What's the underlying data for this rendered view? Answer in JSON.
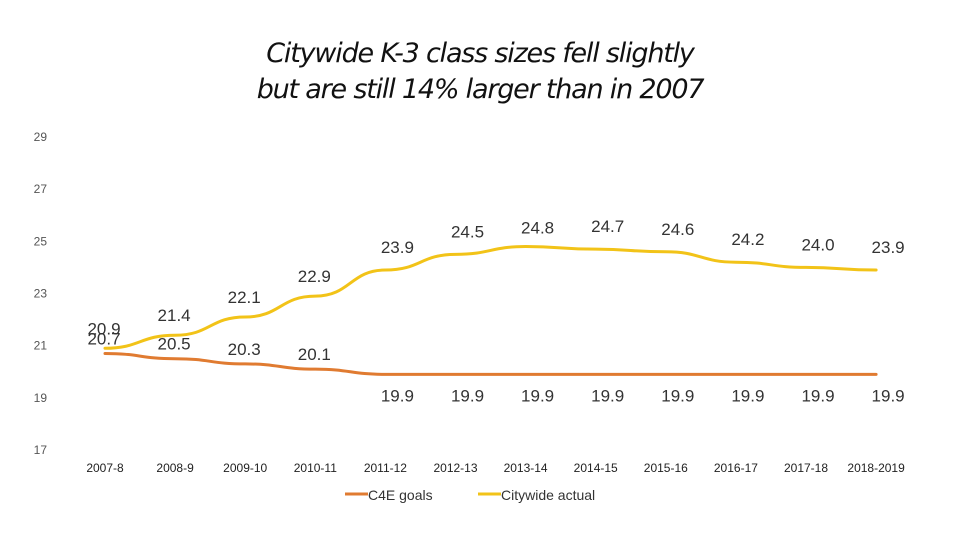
{
  "title_lines": [
    "Citywide K-3 class sizes fell slightly",
    "but are still 14% larger than in 2007"
  ],
  "chart_data": {
    "type": "line",
    "title": "Citywide K-3 class sizes fell slightly but are still 14% larger than in 2007",
    "categories": [
      "2007-8",
      "2008-9",
      "2009-10",
      "2010-11",
      "2011-12",
      "2012-13",
      "2013-14",
      "2014-15",
      "2015-16",
      "2016-17",
      "2017-18",
      "2018-2019"
    ],
    "yticks": [
      17,
      19,
      21,
      23,
      25,
      27,
      29
    ],
    "ylim": [
      17,
      29
    ],
    "grid": false,
    "legend_position": "bottom",
    "series": [
      {
        "name": "C4E goals",
        "color": "#E07B31",
        "values": [
          20.7,
          20.5,
          20.3,
          20.1,
          19.9,
          19.9,
          19.9,
          19.9,
          19.9,
          19.9,
          19.9,
          19.9
        ],
        "labels": [
          "20.7",
          "20.5",
          "20.3",
          "20.1",
          "19.9",
          "19.9",
          "19.9",
          "19.9",
          "19.9",
          "19.9",
          "19.9",
          "19.9"
        ]
      },
      {
        "name": "Citywide actual",
        "color": "#F2C318",
        "values": [
          20.9,
          21.4,
          22.1,
          22.9,
          23.9,
          24.5,
          24.8,
          24.7,
          24.6,
          24.2,
          24.0,
          23.9
        ],
        "labels": [
          "20.9",
          "21.4",
          "22.1",
          "22.9",
          "23.9",
          "24.5",
          "24.8",
          "24.7",
          "24.6",
          "24.2",
          "24.0",
          "23.9"
        ]
      }
    ]
  }
}
